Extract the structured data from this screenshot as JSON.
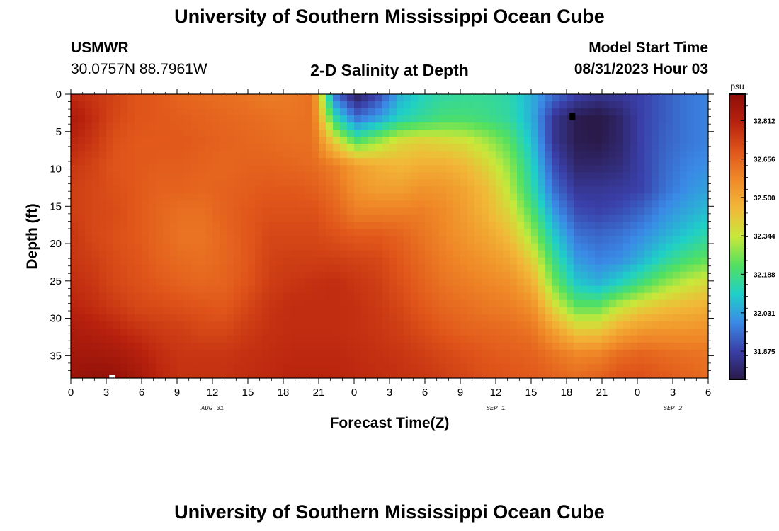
{
  "header": {
    "title": "University of Southern Mississippi Ocean Cube",
    "station": "USMWR",
    "coords": "30.0757N  88.7961W",
    "plot_title": "2-D Salinity at Depth",
    "model_label": "Model Start Time",
    "model_time": "08/31/2023 Hour 03"
  },
  "footer": {
    "title": "University of Southern Mississippi Ocean Cube"
  },
  "chart_data": {
    "type": "heatmap",
    "title": "2-D Salinity at Depth",
    "xlabel": "Forecast Time(Z)",
    "ylabel": "Depth (ft)",
    "x_hours": [
      0,
      54
    ],
    "x_tick_labels": [
      "0",
      "3",
      "6",
      "9",
      "12",
      "15",
      "18",
      "21",
      "0",
      "3",
      "6",
      "9",
      "12",
      "15",
      "18",
      "21",
      "0",
      "3",
      "6"
    ],
    "date_labels": [
      {
        "hour": 12,
        "label": "AUG 31"
      },
      {
        "hour": 36,
        "label": "SEP 1"
      },
      {
        "hour": 51,
        "label": "SEP 2"
      }
    ],
    "y_range": [
      0,
      38
    ],
    "y_ticks": [
      0,
      5,
      10,
      15,
      20,
      25,
      30,
      35
    ],
    "colorbar": {
      "unit": "psu",
      "range": [
        31.76,
        32.92
      ],
      "ticks": [
        "32.812",
        "32.656",
        "32.500",
        "32.344",
        "32.188",
        "32.031",
        "31.875"
      ],
      "colors": [
        "#2a1a4a",
        "#3a3fa8",
        "#3a8ae6",
        "#1fd0c8",
        "#52e060",
        "#c8e83a",
        "#f2b838",
        "#f08a28",
        "#e0551a",
        "#b8220e",
        "#8e0e08"
      ]
    },
    "salinity_field": [
      [
        32.78,
        32.76,
        32.73,
        32.69,
        32.68,
        32.65,
        32.64,
        32.63,
        32.62,
        32.6,
        32.61,
        32.63,
        31.95,
        31.78,
        31.88,
        32.05,
        32.12,
        32.15,
        32.16,
        32.16,
        32.14,
        32.05,
        31.95,
        31.88,
        31.85,
        31.86,
        31.88,
        31.92,
        31.96,
        31.98
      ],
      [
        32.84,
        32.78,
        32.72,
        32.69,
        32.68,
        32.67,
        32.66,
        32.65,
        32.64,
        32.63,
        32.62,
        32.63,
        32.15,
        31.95,
        32.02,
        32.12,
        32.16,
        32.2,
        32.2,
        32.18,
        32.15,
        32.05,
        31.85,
        31.77,
        31.75,
        31.8,
        31.88,
        31.92,
        31.96,
        31.98
      ],
      [
        32.8,
        32.76,
        32.7,
        32.68,
        32.68,
        32.68,
        32.67,
        32.66,
        32.65,
        32.64,
        32.63,
        32.63,
        32.4,
        32.22,
        32.3,
        32.38,
        32.4,
        32.38,
        32.36,
        32.3,
        32.22,
        32.08,
        31.85,
        31.77,
        31.76,
        31.8,
        31.88,
        31.93,
        31.96,
        31.98
      ],
      [
        32.76,
        32.73,
        32.69,
        32.68,
        32.67,
        32.67,
        32.66,
        32.65,
        32.66,
        32.66,
        32.65,
        32.64,
        32.6,
        32.52,
        32.48,
        32.46,
        32.48,
        32.48,
        32.45,
        32.38,
        32.28,
        32.12,
        31.9,
        31.8,
        31.8,
        31.82,
        31.88,
        31.94,
        31.98,
        32.0
      ],
      [
        32.74,
        32.72,
        32.7,
        32.68,
        32.66,
        32.66,
        32.65,
        32.66,
        32.67,
        32.68,
        32.68,
        32.67,
        32.63,
        32.55,
        32.52,
        32.52,
        32.55,
        32.54,
        32.5,
        32.44,
        32.32,
        32.15,
        31.95,
        31.85,
        31.85,
        31.86,
        31.88,
        31.95,
        32.0,
        32.03
      ],
      [
        32.74,
        32.72,
        32.71,
        32.68,
        32.65,
        32.63,
        32.63,
        32.66,
        32.68,
        32.7,
        32.7,
        32.7,
        32.66,
        32.6,
        32.6,
        32.6,
        32.6,
        32.57,
        32.52,
        32.46,
        32.38,
        32.22,
        32.02,
        31.9,
        31.88,
        31.9,
        31.94,
        32.0,
        32.04,
        32.08
      ],
      [
        32.76,
        32.72,
        32.7,
        32.68,
        32.65,
        32.62,
        32.62,
        32.65,
        32.68,
        32.72,
        32.72,
        32.72,
        32.7,
        32.68,
        32.68,
        32.66,
        32.62,
        32.58,
        32.54,
        32.5,
        32.44,
        32.3,
        32.1,
        31.96,
        31.94,
        31.96,
        32.0,
        32.05,
        32.1,
        32.15
      ],
      [
        32.76,
        32.74,
        32.71,
        32.69,
        32.66,
        32.64,
        32.63,
        32.65,
        32.68,
        32.73,
        32.74,
        32.74,
        32.74,
        32.73,
        32.72,
        32.68,
        32.64,
        32.6,
        32.57,
        32.54,
        32.5,
        32.4,
        32.18,
        32.02,
        31.98,
        32.0,
        32.06,
        32.14,
        32.2,
        32.24
      ],
      [
        32.78,
        32.76,
        32.72,
        32.7,
        32.68,
        32.66,
        32.65,
        32.66,
        32.69,
        32.74,
        32.76,
        32.77,
        32.78,
        32.76,
        32.74,
        32.7,
        32.66,
        32.62,
        32.6,
        32.58,
        32.56,
        32.48,
        32.26,
        32.1,
        32.06,
        32.12,
        32.2,
        32.28,
        32.34,
        32.38
      ],
      [
        32.8,
        32.78,
        32.75,
        32.72,
        32.71,
        32.7,
        32.69,
        32.68,
        32.72,
        32.76,
        32.78,
        32.78,
        32.78,
        32.77,
        32.75,
        32.72,
        32.68,
        32.65,
        32.63,
        32.61,
        32.6,
        32.56,
        32.38,
        32.24,
        32.24,
        32.34,
        32.4,
        32.44,
        32.46,
        32.48
      ],
      [
        32.84,
        32.82,
        32.8,
        32.77,
        32.75,
        32.74,
        32.72,
        32.72,
        32.75,
        32.77,
        32.78,
        32.78,
        32.78,
        32.77,
        32.76,
        32.74,
        32.71,
        32.68,
        32.66,
        32.65,
        32.64,
        32.62,
        32.52,
        32.42,
        32.42,
        32.5,
        32.54,
        32.55,
        32.55,
        32.56
      ],
      [
        32.86,
        32.86,
        32.85,
        32.82,
        32.78,
        32.76,
        32.76,
        32.76,
        32.77,
        32.78,
        32.79,
        32.79,
        32.79,
        32.78,
        32.77,
        32.76,
        32.74,
        32.72,
        32.7,
        32.68,
        32.67,
        32.66,
        32.62,
        32.58,
        32.59,
        32.64,
        32.66,
        32.64,
        32.63,
        32.62
      ],
      [
        32.88,
        32.9,
        32.9,
        32.86,
        32.8,
        32.77,
        32.77,
        32.77,
        32.78,
        32.79,
        32.8,
        32.8,
        32.8,
        32.79,
        32.78,
        32.77,
        32.76,
        32.74,
        32.72,
        32.7,
        32.69,
        32.68,
        32.66,
        32.64,
        32.66,
        32.7,
        32.7,
        32.68,
        32.66,
        32.64
      ]
    ],
    "markers": [
      {
        "hour": 42.5,
        "depth": 3,
        "color": "#000000"
      },
      {
        "hour": 3.5,
        "depth": 38,
        "color": "#ffffff"
      }
    ]
  }
}
